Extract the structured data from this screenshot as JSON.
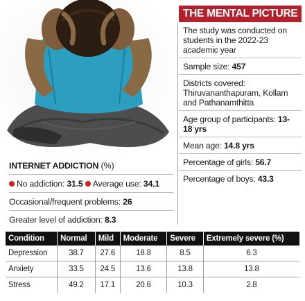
{
  "panel": {
    "title": "THE MENTAL PICTURE",
    "items": [
      {
        "label": "The study was conducted on students in the 2022-23 academic year",
        "value": ""
      },
      {
        "label": "Sample size: ",
        "value": "457"
      },
      {
        "label": "Districts covered: Thiruvananthapuram, Kollam and Pathanamthitta",
        "value": ""
      },
      {
        "label": "Age group of participants: ",
        "value": "13-18 yrs"
      },
      {
        "label": "Mean age: ",
        "value": "14.8 yrs"
      },
      {
        "label": "Percentage of girls: ",
        "value": "56.7"
      },
      {
        "label": "Percentage of boys: ",
        "value": "43.3"
      }
    ]
  },
  "internet": {
    "title": "INTERNET ADDICTION",
    "unit": " (%)",
    "no_addiction_label": "No addiction: ",
    "no_addiction_value": "31.5",
    "average_use_label": "Average use: ",
    "average_use_value": "34.1",
    "occasional_label": "Occasional/frequent problems: ",
    "occasional_value": "26",
    "greater_label": "Greater level of addiction: ",
    "greater_value": "8.3"
  },
  "table": {
    "headers": [
      "Condition",
      "Normal",
      "Mild",
      "Moderate",
      "Severe",
      "Extremely severe (%)"
    ],
    "rows": [
      [
        "Depression",
        "38.7",
        "27.6",
        "18.8",
        "8.5",
        "6.3"
      ],
      [
        "Anxiety",
        "33.5",
        "24.5",
        "13.6",
        "13.8",
        "13.8"
      ],
      [
        "Stress",
        "49.2",
        "17.1",
        "20.6",
        "10.3",
        "2.8"
      ]
    ]
  },
  "colors": {
    "accent": "#b3212c",
    "dot": "#d41f2b",
    "header_bg": "#111111"
  },
  "illustration": "person-head-in-hands-illustration"
}
